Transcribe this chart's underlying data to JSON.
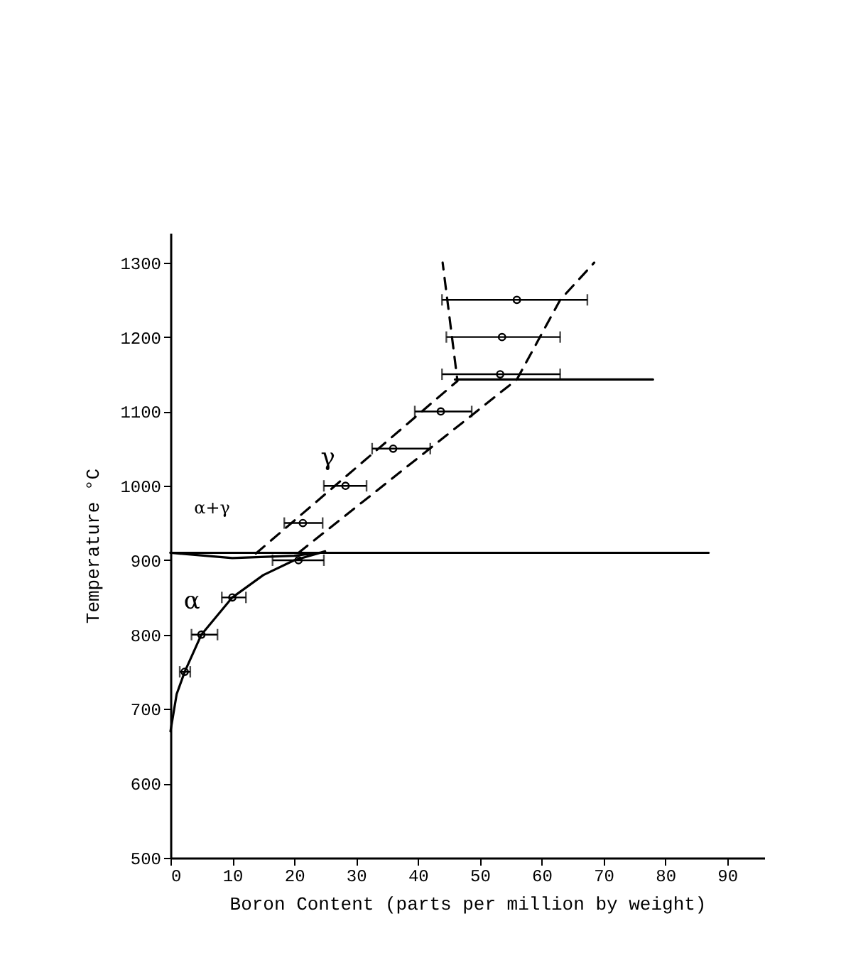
{
  "chart_data": {
    "type": "line",
    "xlabel": "Boron Content (parts per million by weight)",
    "ylabel": "Temperature °C",
    "xlim": [
      0,
      96
    ],
    "ylim": [
      500,
      1340
    ],
    "xticks": [
      0,
      10,
      20,
      30,
      40,
      50,
      60,
      70,
      80,
      90
    ],
    "yticks": [
      500,
      600,
      700,
      800,
      900,
      1000,
      1100,
      1200,
      1300
    ],
    "grid": false,
    "series": [
      {
        "type": "scatter",
        "marker": "circle",
        "color": "#000000",
        "x": [
          2.3,
          5,
          10,
          20.7,
          21.4,
          28.3,
          36,
          43.7,
          53.3,
          53.6,
          56
        ],
        "values": [
          750,
          800,
          850,
          900,
          950,
          1000,
          1050,
          1100,
          1150,
          1200,
          1250
        ],
        "xerrors": [
          [
            1.5,
            3.2
          ],
          [
            3.4,
            7.6
          ],
          [
            8.3,
            12.2
          ],
          [
            16.5,
            24.8
          ],
          [
            18.4,
            24.6
          ],
          [
            24.8,
            31.7
          ],
          [
            32.6,
            42
          ],
          [
            39.5,
            48.7
          ],
          [
            43.9,
            63
          ],
          [
            44.6,
            63
          ],
          [
            43.9,
            67.4
          ]
        ]
      },
      {
        "type": "line",
        "line_style": "solid",
        "color": "#000000",
        "x": [
          0,
          1,
          2.3,
          5,
          10,
          15,
          20,
          25
        ],
        "values": [
          670,
          720,
          750,
          800,
          850,
          880,
          900,
          912
        ]
      },
      {
        "type": "line",
        "line_style": "solid",
        "color": "#000000",
        "x": [
          0,
          87
        ],
        "values": [
          910,
          910
        ]
      },
      {
        "type": "line",
        "line_style": "solid",
        "color": "#000000",
        "x": [
          46,
          78
        ],
        "values": [
          1143,
          1143
        ]
      },
      {
        "type": "line",
        "line_style": "solid",
        "color": "#000000",
        "x": [
          0,
          10,
          20,
          24
        ],
        "values": [
          910,
          903,
          906,
          910
        ]
      },
      {
        "type": "line",
        "line_style": "dashed",
        "color": "#000000",
        "x": [
          13.8,
          46.4,
          44
        ],
        "values": [
          909,
          1141,
          1300
        ]
      },
      {
        "type": "line",
        "line_style": "dashed",
        "color": "#000000",
        "x": [
          20.7,
          56,
          63,
          68.5
        ],
        "values": [
          910,
          1143,
          1250,
          1300
        ]
      }
    ],
    "annotations": [
      "γ",
      "α+γ",
      "α"
    ]
  }
}
